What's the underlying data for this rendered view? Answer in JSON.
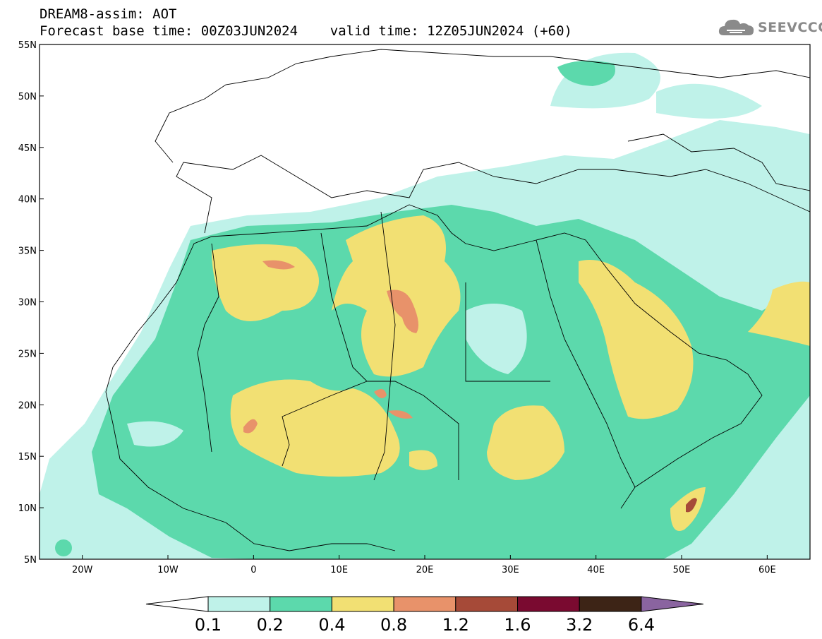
{
  "header": {
    "line1": "DREAM8-assim: AOT",
    "line2": "Forecast base time: 00Z03JUN2024    valid time: 12Z05JUN2024 (+60)"
  },
  "logo": {
    "text": "SEEVCCC",
    "icon": "cloud-icon",
    "color": "#8a8a8a"
  },
  "map": {
    "lat_ticks": [
      "55N",
      "50N",
      "45N",
      "40N",
      "35N",
      "30N",
      "25N",
      "20N",
      "15N",
      "10N",
      "5N"
    ],
    "lon_ticks": [
      "20W",
      "10W",
      "0",
      "10E",
      "20E",
      "30E",
      "40E",
      "50E",
      "60E"
    ],
    "lon_range": [
      -25,
      65
    ],
    "lat_range": [
      5,
      55
    ]
  },
  "colorbar": {
    "levels": [
      "0.1",
      "0.2",
      "0.4",
      "0.8",
      "1.2",
      "1.6",
      "3.2",
      "6.4"
    ],
    "colors": [
      "#ffffff",
      "#bff2e9",
      "#5cd9ac",
      "#f2e073",
      "#e8926a",
      "#a64a38",
      "#7a0a30",
      "#3d2416",
      "#8a64a0"
    ]
  }
}
